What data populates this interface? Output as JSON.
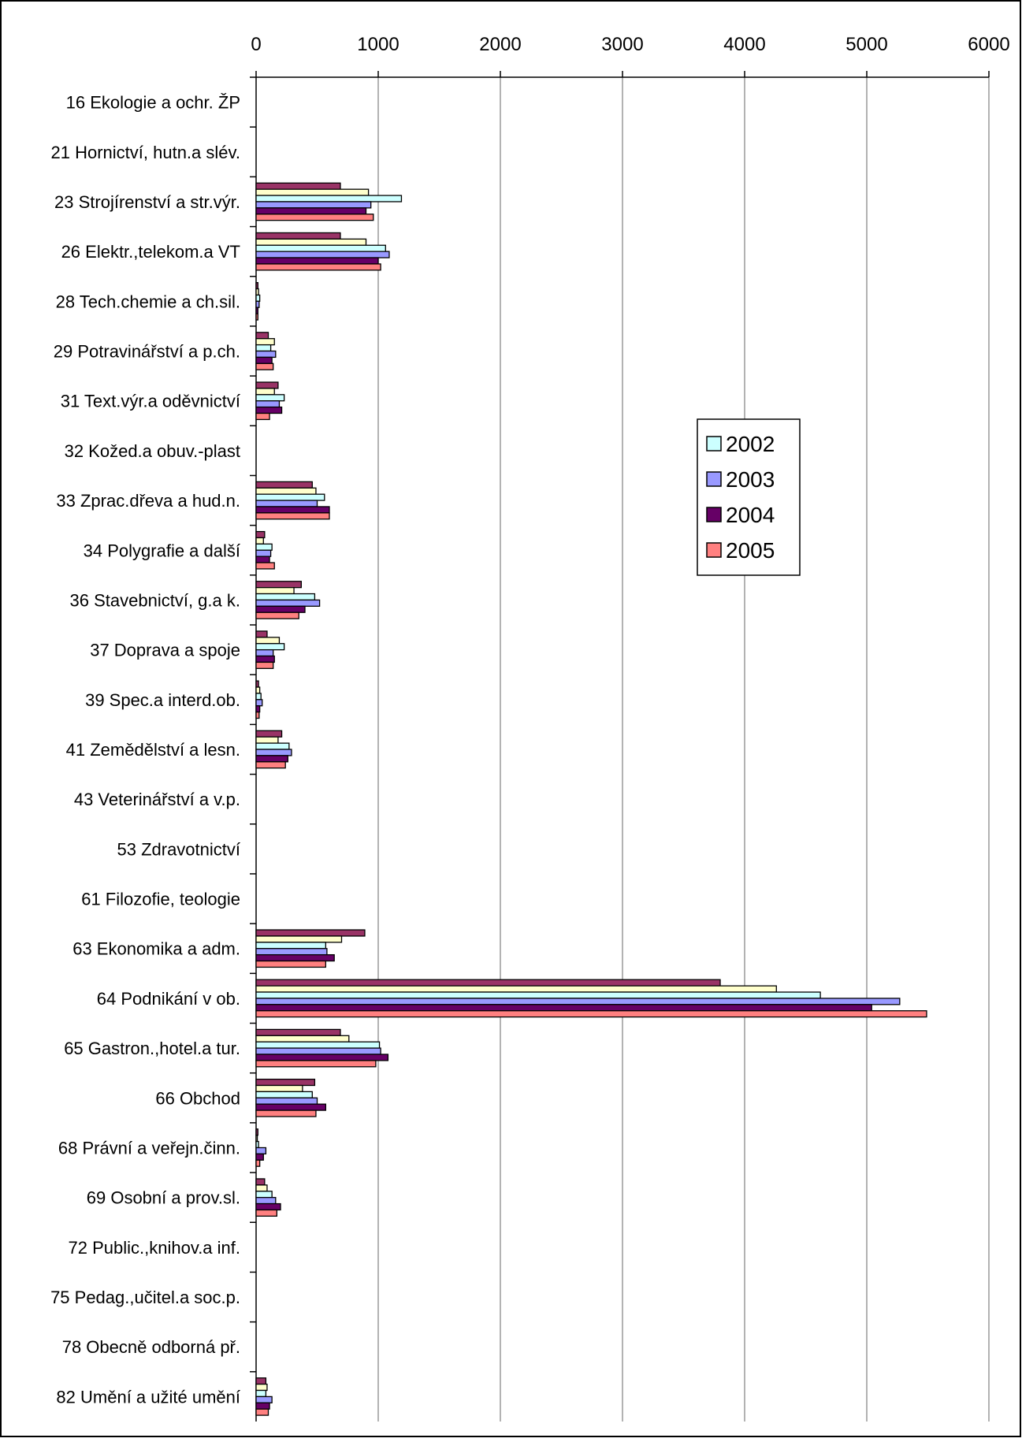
{
  "chart_data": {
    "type": "bar",
    "orientation": "horizontal",
    "title": "",
    "xlabel": "",
    "ylabel": "",
    "xlim": [
      0,
      6000
    ],
    "x_ticks": [
      "0",
      "1000",
      "2000",
      "3000",
      "4000",
      "5000",
      "6000"
    ],
    "x_axis_position": "top",
    "grid": true,
    "legend_position": "right-center",
    "categories": [
      "16 Ekologie a ochr. ŽP",
      "21 Hornictví, hutn.a slév.",
      "23 Strojírenství a str.výr.",
      "26 Elektr.,telekom.a VT",
      "28 Tech.chemie a ch.sil.",
      "29 Potravinářství a p.ch.",
      "31 Text.výr.a oděvnictví",
      "32 Kožed.a obuv.-plast",
      "33 Zprac.dřeva a hud.n.",
      "34 Polygrafie a další",
      "36 Stavebnictví, g.a k.",
      "37 Doprava a spoje",
      "39 Spec.a interd.ob.",
      "41 Zemědělství a lesn.",
      "43 Veterinářství a v.p.",
      "53 Zdravotnictví",
      "61 Filozofie, teologie",
      "63 Ekonomika a adm.",
      "64 Podnikání v ob.",
      "65 Gastron.,hotel.a tur.",
      "66 Obchod",
      "68 Právní a veřejn.činn.",
      "69 Osobní a prov.sl.",
      "72 Public.,knihov.a inf.",
      "75 Pedag.,učitel.a soc.p.",
      "78 Obecně odborná př.",
      "82 Umění a užité umění"
    ],
    "series": [
      {
        "values": [
          0,
          0,
          690,
          690,
          15,
          100,
          180,
          0,
          460,
          70,
          370,
          90,
          20,
          210,
          0,
          0,
          0,
          890,
          3800,
          690,
          480,
          15,
          70,
          0,
          0,
          0,
          80
        ],
        "color": "#993366"
      },
      {
        "values": [
          0,
          0,
          920,
          900,
          20,
          150,
          150,
          0,
          490,
          60,
          310,
          190,
          30,
          180,
          0,
          0,
          0,
          700,
          4260,
          760,
          380,
          10,
          90,
          0,
          0,
          0,
          90
        ],
        "color": "#ffffcc"
      },
      {
        "name": "2002",
        "values": [
          0,
          0,
          1190,
          1060,
          30,
          120,
          230,
          0,
          560,
          130,
          480,
          230,
          40,
          270,
          0,
          0,
          0,
          570,
          4620,
          1010,
          460,
          20,
          130,
          0,
          0,
          0,
          80
        ],
        "color": "#ccffff"
      },
      {
        "name": "2003",
        "values": [
          0,
          0,
          940,
          1090,
          25,
          160,
          190,
          0,
          500,
          120,
          520,
          140,
          50,
          290,
          0,
          0,
          0,
          580,
          5270,
          1020,
          500,
          80,
          160,
          0,
          0,
          0,
          130
        ],
        "color": "#9999ff"
      },
      {
        "name": "2004",
        "values": [
          0,
          0,
          900,
          1000,
          15,
          130,
          210,
          0,
          600,
          110,
          400,
          150,
          30,
          260,
          0,
          0,
          0,
          640,
          5040,
          1080,
          570,
          60,
          200,
          0,
          0,
          0,
          110
        ],
        "color": "#660066"
      },
      {
        "name": "2005",
        "values": [
          0,
          0,
          960,
          1020,
          15,
          140,
          110,
          0,
          600,
          150,
          350,
          140,
          25,
          240,
          0,
          0,
          0,
          570,
          5490,
          980,
          490,
          30,
          170,
          0,
          0,
          0,
          100
        ],
        "color": "#ff8080"
      }
    ],
    "legend": [
      "2002",
      "2003",
      "2004",
      "2005"
    ]
  }
}
